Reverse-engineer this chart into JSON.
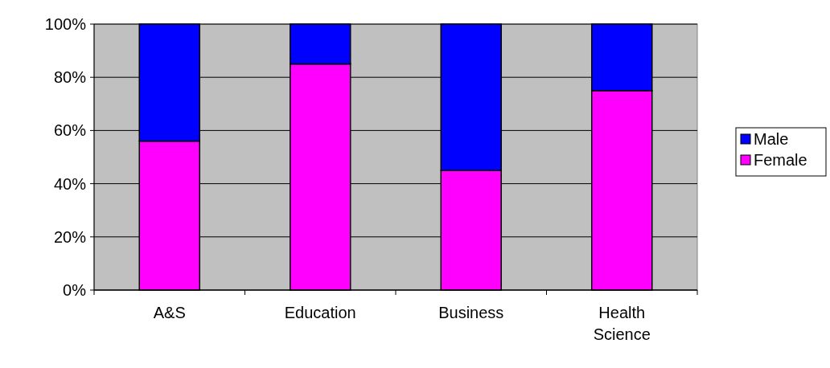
{
  "chart_data": {
    "type": "bar",
    "stacked": true,
    "categories": [
      "A&S",
      "Education",
      "Business",
      "Health Science"
    ],
    "series": [
      {
        "name": "Female",
        "color": "#ff00ff",
        "values": [
          56,
          85,
          45,
          75
        ]
      },
      {
        "name": "Male",
        "color": "#0000ff",
        "values": [
          44,
          15,
          55,
          25
        ]
      }
    ],
    "ylim": [
      0,
      100
    ],
    "yticks": [
      {
        "value": 0,
        "label": "0%"
      },
      {
        "value": 20,
        "label": "20%"
      },
      {
        "value": 40,
        "label": "40%"
      },
      {
        "value": 60,
        "label": "60%"
      },
      {
        "value": 80,
        "label": "80%"
      },
      {
        "value": 100,
        "label": "100%"
      }
    ],
    "grid": "y",
    "legend": "right"
  }
}
